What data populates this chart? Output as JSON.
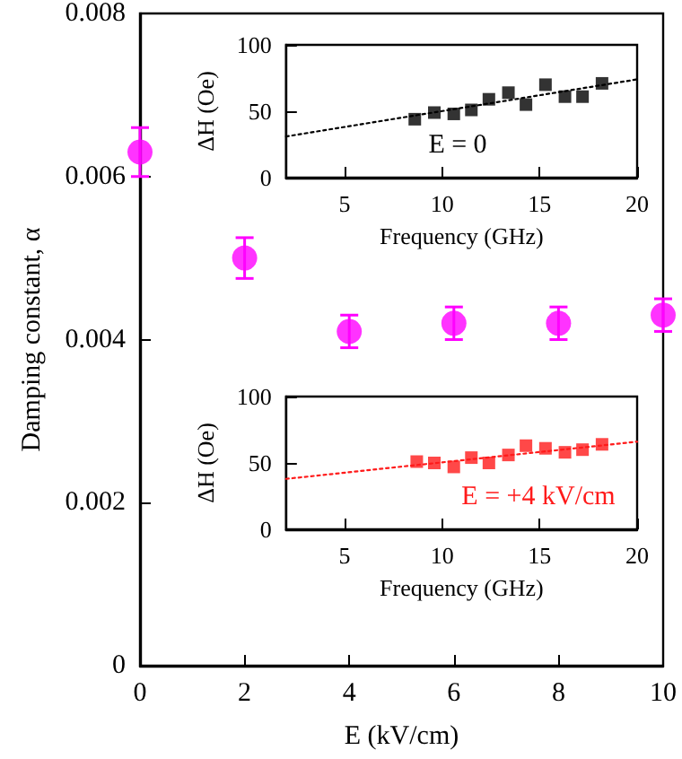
{
  "chart_data": [
    {
      "type": "scatter",
      "xlabel": "E (kV/cm)",
      "ylabel": "Damping constant, α",
      "x": [
        0,
        2,
        4,
        6,
        8,
        10
      ],
      "values": [
        0.0063,
        0.005,
        0.0041,
        0.0042,
        0.0042,
        0.0043
      ],
      "errors": [
        0.0003,
        0.00025,
        0.0002,
        0.0002,
        0.0002,
        0.0002
      ],
      "color": "#ff00ff",
      "marker": "circle",
      "xlim": [
        0,
        10
      ],
      "xticks": [
        0,
        2,
        4,
        6,
        8,
        10
      ],
      "ylim": [
        0,
        0.008
      ],
      "yticks": [
        0,
        0.002,
        0.004,
        0.006,
        0.008
      ]
    },
    {
      "type": "scatter",
      "xlabel": "Frequency (GHz)",
      "ylabel": "ΔH (Oe)",
      "annotations": [
        "E = 0"
      ],
      "xlim": [
        2,
        20
      ],
      "xticks": [
        5,
        10,
        15,
        20
      ],
      "ylim": [
        0,
        100
      ],
      "yticks": [
        0,
        50,
        100
      ],
      "series": [
        {
          "color": "#000000",
          "marker": "square",
          "x": [
            8.6,
            9.6,
            10.6,
            11.5,
            12.4,
            13.4,
            14.3,
            15.3,
            16.3,
            17.2,
            18.2
          ],
          "values": [
            44,
            49,
            48,
            51,
            59,
            64,
            55,
            70,
            61,
            61,
            71
          ]
        },
        {
          "type": "line",
          "color": "#000000",
          "marker": "none",
          "line_style": "dotted",
          "x": [
            2,
            20
          ],
          "values": [
            31,
            74
          ]
        }
      ]
    },
    {
      "type": "scatter",
      "xlabel": "Frequency (GHz)",
      "ylabel": "ΔH (Oe)",
      "annotations": [
        "E = +4 kV/cm"
      ],
      "xlim": [
        2,
        20
      ],
      "xticks": [
        5,
        10,
        15,
        20
      ],
      "ylim": [
        0,
        100
      ],
      "yticks": [
        0,
        50,
        100
      ],
      "series": [
        {
          "color": "#ff1a1a",
          "marker": "square",
          "x": [
            8.7,
            9.6,
            10.6,
            11.5,
            12.4,
            13.4,
            14.3,
            15.3,
            16.3,
            17.2,
            18.2
          ],
          "values": [
            51,
            50,
            47,
            54,
            50,
            56,
            63,
            61,
            58,
            60,
            64
          ]
        },
        {
          "type": "line",
          "color": "#ff1a1a",
          "marker": "none",
          "line_style": "dotted",
          "x": [
            2,
            20
          ],
          "values": [
            38,
            66
          ]
        }
      ]
    }
  ]
}
